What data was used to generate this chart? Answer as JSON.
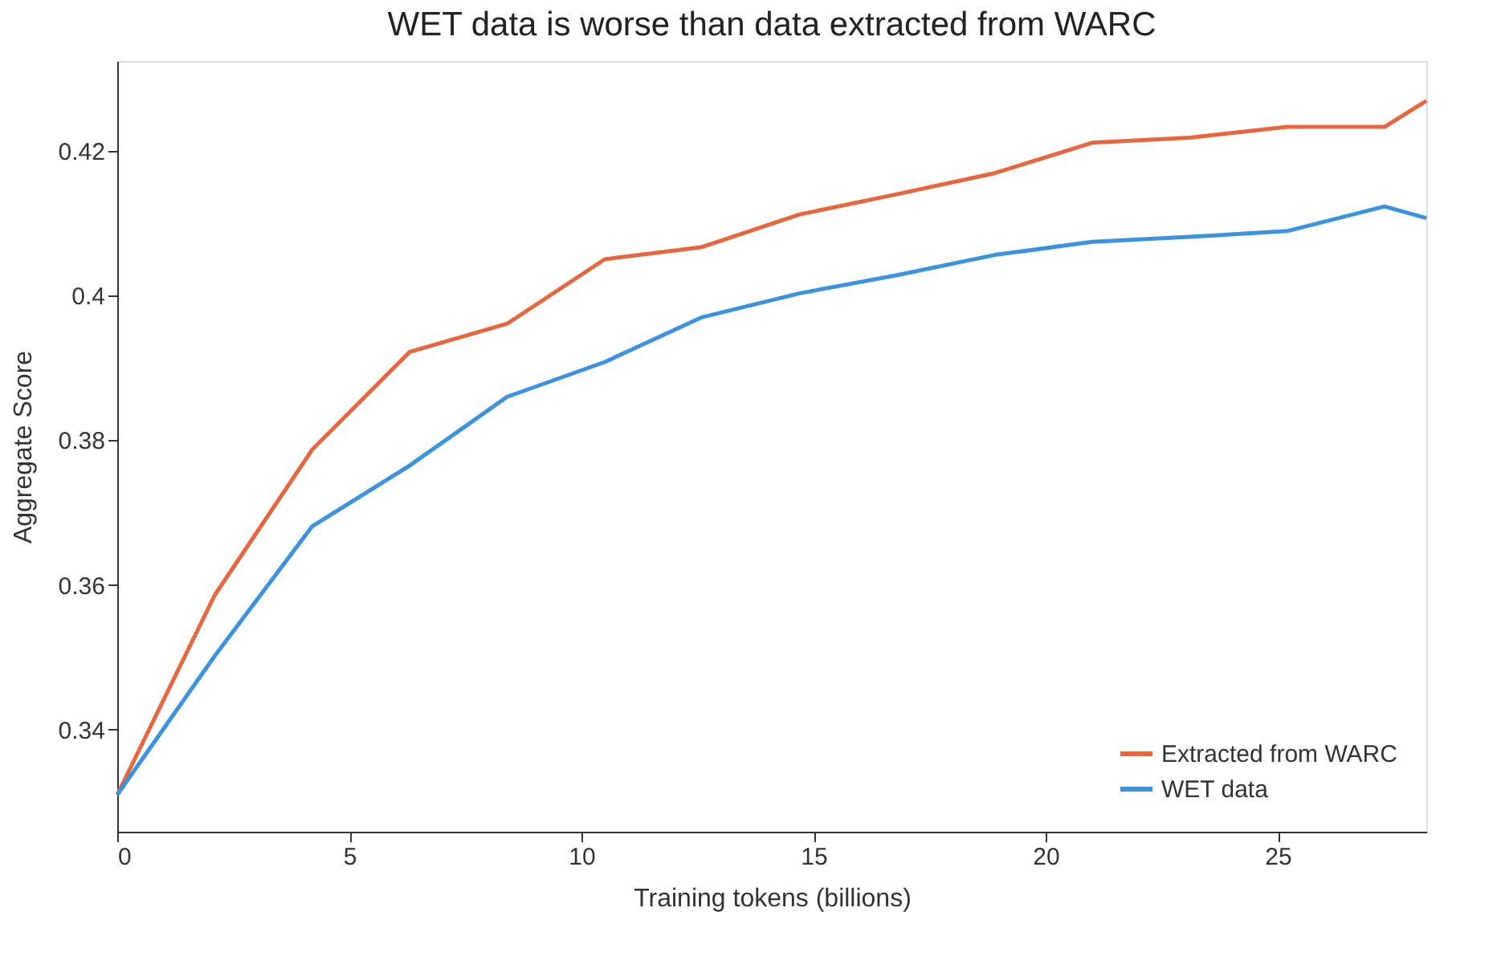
{
  "chart_data": {
    "type": "line",
    "title": "WET data is worse than data extracted from WARC",
    "xlabel": "Training tokens (billions)",
    "ylabel": "Aggregate Score",
    "x": [
      0,
      2.1,
      4.2,
      6.3,
      8.4,
      10.5,
      12.6,
      14.7,
      16.8,
      18.9,
      21,
      23.1,
      25.2,
      27.3,
      28.2
    ],
    "series": [
      {
        "name": "Extracted from WARC",
        "color": "#e8663d",
        "values": [
          0.331,
          0.3586,
          0.3787,
          0.3922,
          0.3961,
          0.405,
          0.4067,
          0.4112,
          0.414,
          0.4169,
          0.4211,
          0.4218,
          0.4233,
          0.4233,
          0.4269
        ]
      },
      {
        "name": "WET data",
        "color": "#3b93e0",
        "values": [
          0.331,
          0.3502,
          0.3681,
          0.3765,
          0.386,
          0.3908,
          0.397,
          0.4003,
          0.4028,
          0.4056,
          0.4074,
          0.4081,
          0.4089,
          0.4123,
          0.4107
        ]
      }
    ],
    "xlim": [
      0,
      28.2
    ],
    "xticks": [
      0,
      5,
      10,
      15,
      20,
      25
    ],
    "ylim": [
      0.3259,
      0.4324
    ],
    "yticks": [
      0.34,
      0.36,
      0.38,
      0.4,
      0.42
    ],
    "grid": false,
    "legend": "bottom right",
    "marker": "none",
    "line_style": "solid"
  }
}
